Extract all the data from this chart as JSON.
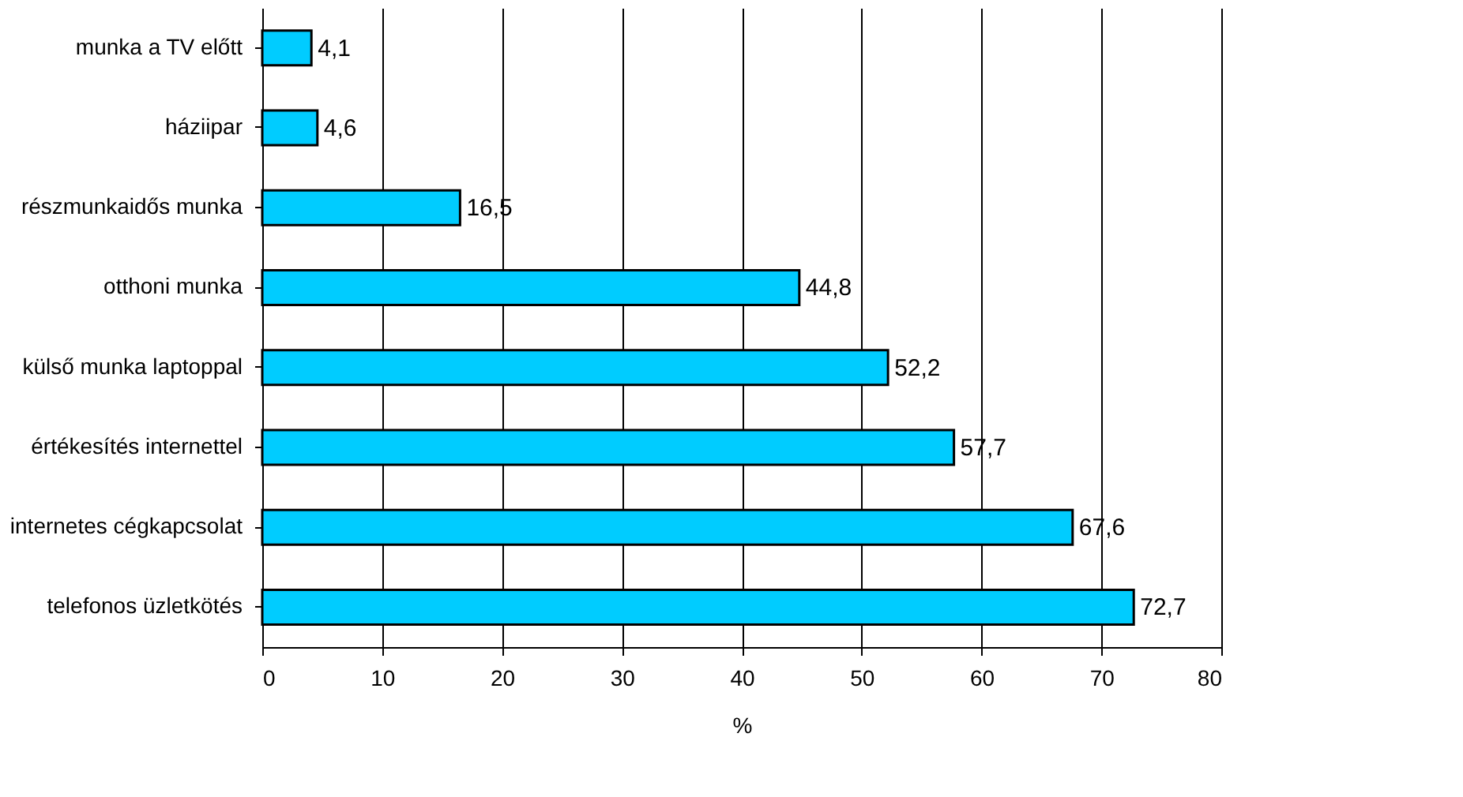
{
  "chart_data": {
    "type": "bar",
    "orientation": "horizontal",
    "xlabel": "%",
    "categories": [
      "munka a TV előtt",
      "háziipar",
      "részmunkaidős munka",
      "otthoni munka",
      "külső munka laptoppal",
      "értékesítés internettel",
      "internetes cégkapcsolat",
      "telefonos üzletkötés"
    ],
    "values": [
      4.1,
      4.6,
      16.5,
      44.8,
      52.2,
      57.7,
      67.6,
      72.7
    ],
    "value_labels": [
      "4,1",
      "4,6",
      "16,5",
      "44,8",
      "52,2",
      "57,7",
      "67,6",
      "72,7"
    ],
    "color": "#00ccff",
    "xlim": [
      0,
      80
    ],
    "xticks": [
      0,
      10,
      20,
      30,
      40,
      50,
      60,
      70,
      80
    ],
    "grid": "x"
  }
}
